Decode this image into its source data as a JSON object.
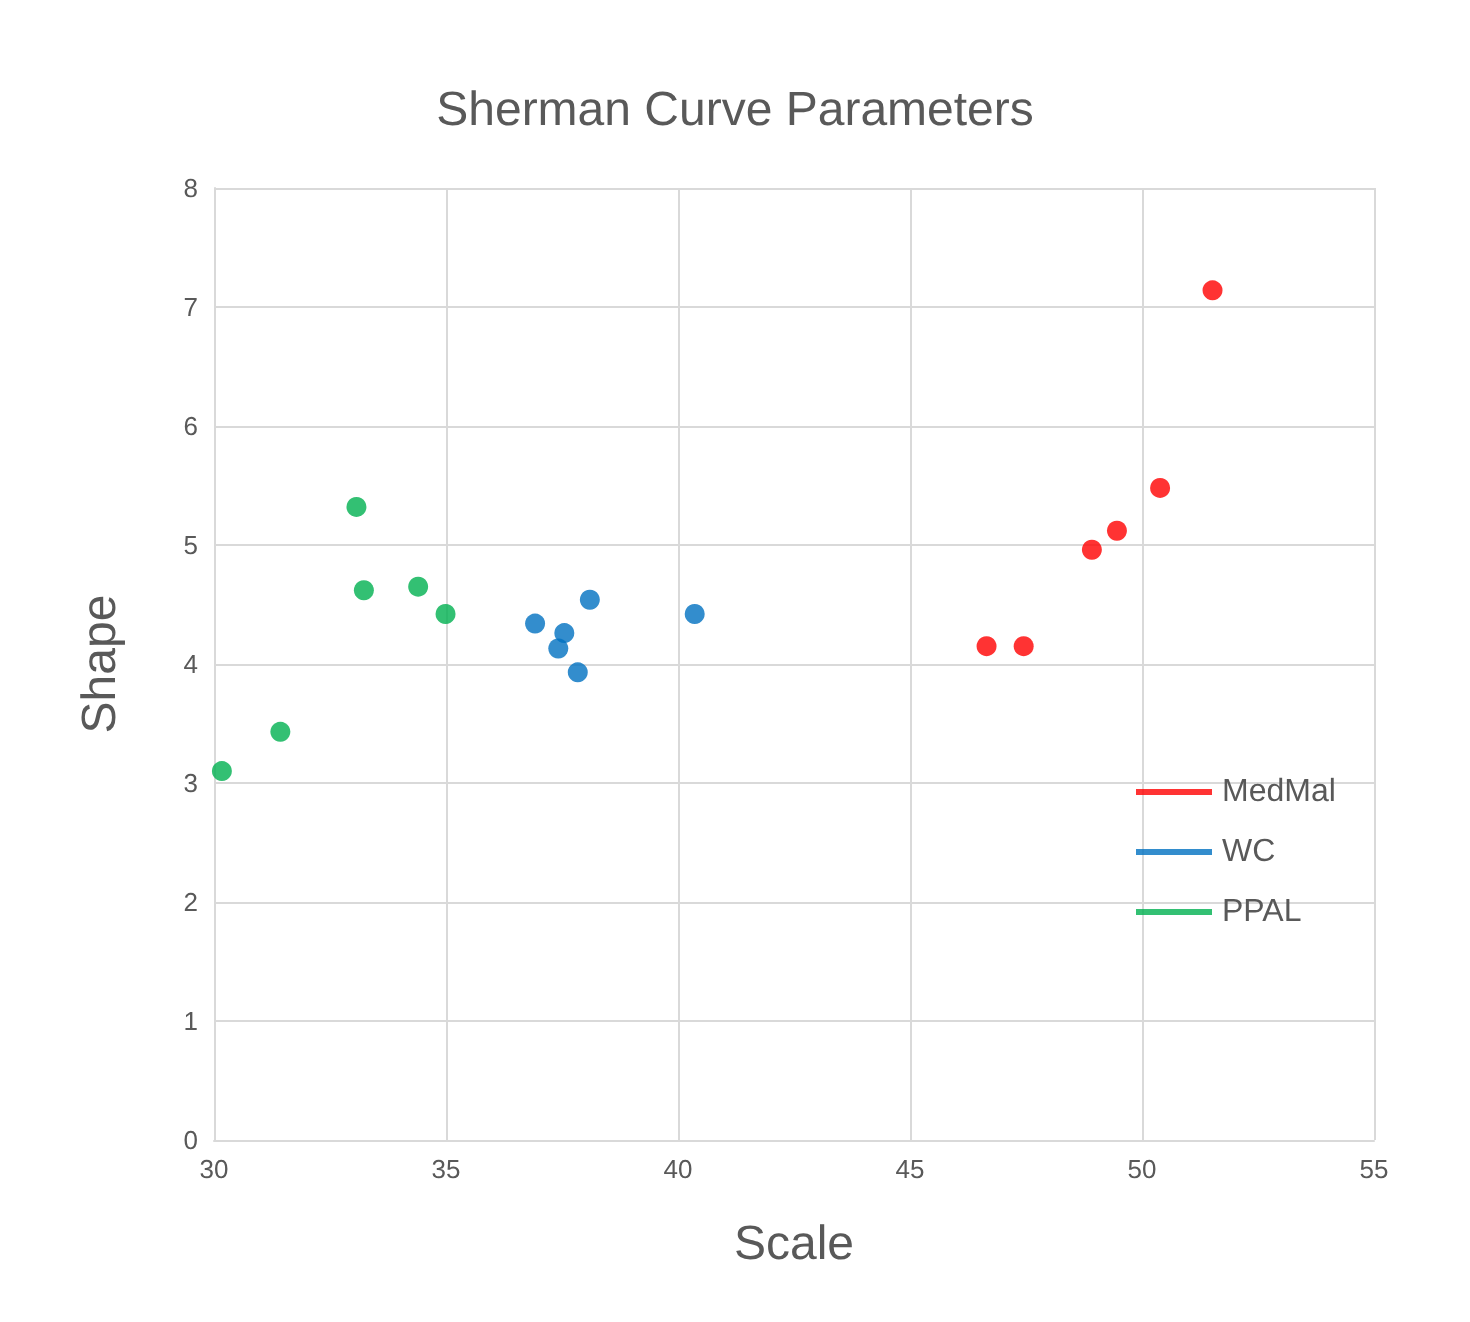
{
  "chart_data": {
    "type": "scatter",
    "title": "Sherman Curve Parameters",
    "xlabel": "Scale",
    "ylabel": "Shape",
    "xlim": [
      30,
      55
    ],
    "xticks": [
      30,
      35,
      40,
      45,
      50,
      55
    ],
    "ylim": [
      0,
      8
    ],
    "yticks": [
      0,
      1,
      2,
      3,
      4,
      5,
      6,
      7,
      8
    ],
    "grid": true,
    "legend": "right",
    "marker": "circle",
    "series": [
      {
        "name": "MedMal",
        "color": "#ff0000",
        "x": [
          46.65,
          47.45,
          48.92,
          49.46,
          50.39,
          51.52
        ],
        "values": [
          4.15,
          4.15,
          4.96,
          5.12,
          5.48,
          7.14
        ]
      },
      {
        "name": "WC",
        "color": "#0070c0",
        "x": [
          36.92,
          37.55,
          37.42,
          37.84,
          38.1,
          40.36
        ],
        "values": [
          4.34,
          4.26,
          4.13,
          3.93,
          4.54,
          4.42
        ]
      },
      {
        "name": "PPAL",
        "color": "#00b050",
        "x": [
          30.17,
          31.43,
          33.07,
          33.23,
          34.4,
          34.99
        ],
        "values": [
          3.1,
          3.43,
          5.32,
          4.62,
          4.65,
          4.42
        ]
      }
    ]
  }
}
